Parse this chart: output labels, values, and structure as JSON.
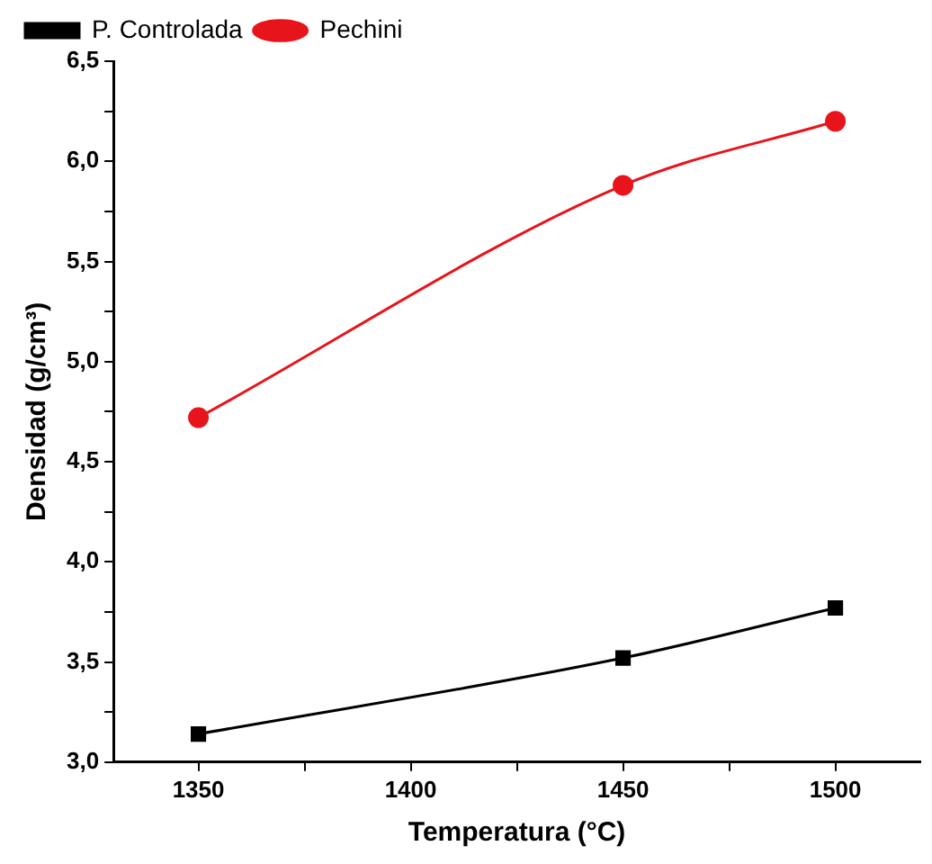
{
  "chart_data": {
    "type": "line",
    "xlabel": "Temperatura (°C)",
    "ylabel": "Densidad (g/cm³)",
    "x": [
      1350,
      1450,
      1500
    ],
    "series": [
      {
        "name": "P. Controlada",
        "color": "#000000",
        "marker": "square",
        "values": [
          3.14,
          3.52,
          3.77
        ]
      },
      {
        "name": "Pechini",
        "color": "#e8141c",
        "marker": "circle",
        "values": [
          4.72,
          5.88,
          6.2
        ]
      }
    ],
    "xlim": [
      1330,
      1520
    ],
    "xticks": [
      1350,
      {
        "value": 1375,
        "label": null
      },
      1400,
      {
        "value": 1425,
        "label": null
      },
      1450,
      {
        "value": 1475,
        "label": null
      },
      1500
    ],
    "ylim": [
      3.0,
      6.5
    ],
    "yticks": [
      {
        "value": 3.0,
        "label": "3,0"
      },
      {
        "value": 3.25,
        "label": null
      },
      {
        "value": 3.5,
        "label": "3,5"
      },
      {
        "value": 3.75,
        "label": null
      },
      {
        "value": 4.0,
        "label": "4,0"
      },
      {
        "value": 4.25,
        "label": null
      },
      {
        "value": 4.5,
        "label": "4,5"
      },
      {
        "value": 4.75,
        "label": null
      },
      {
        "value": 5.0,
        "label": "5,0"
      },
      {
        "value": 5.25,
        "label": null
      },
      {
        "value": 5.5,
        "label": "5,5"
      },
      {
        "value": 5.75,
        "label": null
      },
      {
        "value": 6.0,
        "label": "6,0"
      },
      {
        "value": 6.25,
        "label": null
      },
      {
        "value": 6.5,
        "label": "6,5"
      }
    ],
    "grid": false,
    "legend": "top left",
    "line_style": "solid"
  }
}
